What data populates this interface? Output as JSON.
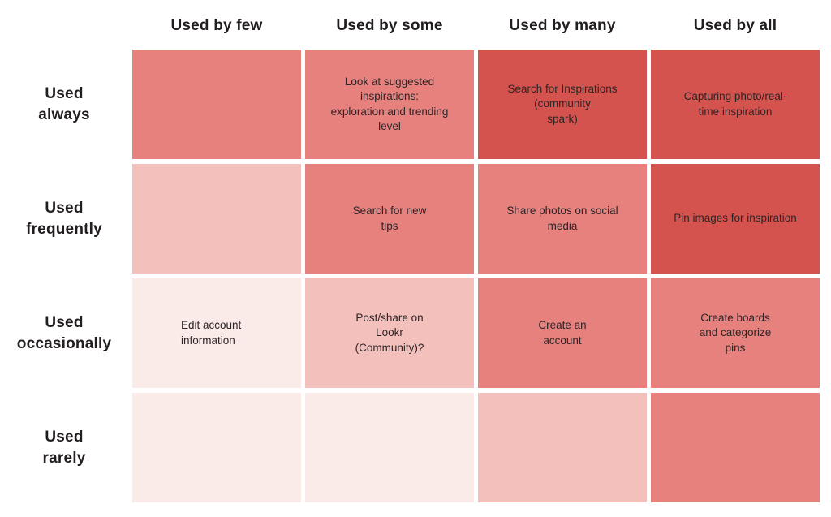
{
  "chart_data": {
    "type": "heatmap",
    "title": "",
    "columns": [
      "Used by few",
      "Used by some",
      "Used by many",
      "Used by all"
    ],
    "rows": [
      "Used\nalways",
      "Used\nfrequently",
      "Used\noccasionally",
      "Used\nrarely"
    ],
    "palette": {
      "level1": "#faeae8",
      "level2": "#f3c0bc",
      "level3": "#e6817e",
      "level4": "#d5534f"
    },
    "legend": "color intensity encodes usage level: level1 = lowest, level4 = highest",
    "cells": [
      [
        {
          "text": "",
          "level": 3
        },
        {
          "text": "Look at suggested\ninspirations:\nexploration and trending\nlevel",
          "level": 3
        },
        {
          "text": "Search for Inspirations\n(community\nspark)",
          "level": 4
        },
        {
          "text": "Capturing photo/real-\ntime inspiration",
          "level": 4
        }
      ],
      [
        {
          "text": "",
          "level": 2
        },
        {
          "text": "Search for new\ntips",
          "level": 3
        },
        {
          "text": "Share photos on social\nmedia",
          "level": 3
        },
        {
          "text": "Pin images for inspiration",
          "level": 4
        }
      ],
      [
        {
          "text": "Edit account\ninformation",
          "level": 1,
          "align": "left"
        },
        {
          "text": "Post/share on\nLookr\n(Community)?",
          "level": 2
        },
        {
          "text": "Create an\naccount",
          "level": 3
        },
        {
          "text": "Create boards\nand categorize\npins",
          "level": 3
        }
      ],
      [
        {
          "text": "",
          "level": 1
        },
        {
          "text": "",
          "level": 1
        },
        {
          "text": "",
          "level": 2
        },
        {
          "text": "",
          "level": 3
        }
      ]
    ]
  }
}
